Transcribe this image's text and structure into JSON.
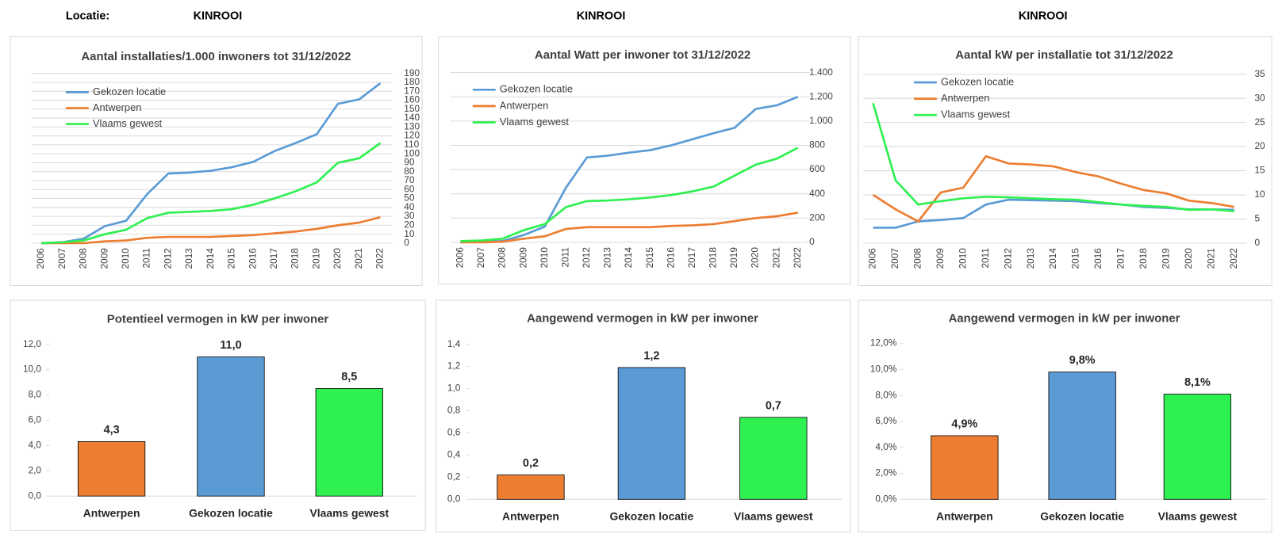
{
  "header": {
    "label": "Locatie:",
    "locations": [
      "KINROOI",
      "KINROOI",
      "KINROOI"
    ]
  },
  "chart_data": [
    {
      "type": "line",
      "title": "Aantal installaties/1.000  inwoners tot 31/12/2022",
      "categories": [
        "2006",
        "2007",
        "2008",
        "2009",
        "2010",
        "2011",
        "2012",
        "2013",
        "2014",
        "2015",
        "2016",
        "2017",
        "2018",
        "2019",
        "2020",
        "2021",
        "2022"
      ],
      "series": [
        {
          "name": "Gekozen locatie",
          "color": "#5b9bd5",
          "values": [
            0,
            1,
            5,
            19,
            25,
            55,
            78,
            79,
            81,
            85,
            91,
            103,
            112,
            122,
            156,
            161,
            179
          ]
        },
        {
          "name": "Antwerpen",
          "color": "#ed7d31",
          "values": [
            0,
            0,
            0,
            2,
            3,
            6,
            7,
            7,
            7,
            8,
            9,
            11,
            13,
            16,
            20,
            23,
            29
          ]
        },
        {
          "name": "Vlaams gewest",
          "color": "#2ef050",
          "values": [
            0,
            1,
            3,
            10,
            15,
            28,
            34,
            35,
            36,
            38,
            43,
            50,
            58,
            68,
            90,
            95,
            112
          ]
        }
      ],
      "ylim": [
        0,
        190
      ],
      "yticks": [
        0,
        10,
        20,
        30,
        40,
        50,
        60,
        70,
        80,
        90,
        100,
        110,
        120,
        130,
        140,
        150,
        160,
        170,
        180,
        190
      ],
      "grid": true,
      "legend": "upper left"
    },
    {
      "type": "line",
      "title": "Aantal Watt per inwoner  tot 31/12/2022",
      "categories": [
        "2006",
        "2007",
        "2008",
        "2009",
        "2010",
        "2011",
        "2012",
        "2013",
        "2014",
        "2015",
        "2016",
        "2017",
        "2018",
        "2019",
        "2020",
        "2021",
        "2022"
      ],
      "series": [
        {
          "name": "Gekozen locatie",
          "color": "#5b9bd5",
          "values": [
            0,
            5,
            10,
            60,
            130,
            450,
            700,
            715,
            740,
            760,
            800,
            850,
            900,
            945,
            1100,
            1130,
            1200
          ]
        },
        {
          "name": "Antwerpen",
          "color": "#ed7d31",
          "values": [
            0,
            0,
            5,
            30,
            50,
            110,
            125,
            125,
            125,
            125,
            135,
            140,
            150,
            175,
            200,
            215,
            245
          ]
        },
        {
          "name": "Vlaams gewest",
          "color": "#2ef050",
          "values": [
            10,
            15,
            30,
            100,
            150,
            290,
            340,
            345,
            355,
            370,
            390,
            420,
            460,
            550,
            640,
            690,
            780
          ]
        }
      ],
      "ylim": [
        0,
        1400
      ],
      "yticks": [
        0,
        200,
        400,
        600,
        800,
        {
          "value": 1000,
          "label": "1.000"
        },
        {
          "value": 1200,
          "label": "1.200"
        },
        {
          "value": 1400,
          "label": "1.400"
        }
      ],
      "grid": true,
      "legend": "upper left"
    },
    {
      "type": "line",
      "title": "Aantal kW per installatie  tot 31/12/2022",
      "categories": [
        "2006",
        "2007",
        "2008",
        "2009",
        "2010",
        "2011",
        "2012",
        "2013",
        "2014",
        "2015",
        "2016",
        "2017",
        "2018",
        "2019",
        "2020",
        "2021",
        "2022"
      ],
      "series": [
        {
          "name": "Gekozen locatie",
          "color": "#5b9bd5",
          "values": [
            3.2,
            3.2,
            4.5,
            4.8,
            5.2,
            8.0,
            9.0,
            8.9,
            8.8,
            8.7,
            8.3,
            8.0,
            7.5,
            7.3,
            7.0,
            7.0,
            6.9
          ]
        },
        {
          "name": "Antwerpen",
          "color": "#ed7d31",
          "values": [
            10,
            7,
            4.5,
            10.5,
            11.5,
            18,
            16.5,
            16.3,
            15.9,
            14.7,
            13.8,
            12.3,
            11,
            10.3,
            8.8,
            8.3,
            7.5
          ]
        },
        {
          "name": "Vlaams gewest",
          "color": "#2ef050",
          "values": [
            29,
            13,
            8,
            8.7,
            9.3,
            9.6,
            9.5,
            9.3,
            9.1,
            9,
            8.5,
            8,
            7.7,
            7.5,
            6.9,
            7,
            6.6
          ]
        }
      ],
      "ylim": [
        0,
        35
      ],
      "yticks": [
        0,
        5,
        10,
        15,
        20,
        25,
        30,
        35
      ],
      "grid": true,
      "legend": "upper left"
    },
    {
      "type": "bar",
      "title": "Potentieel vermogen in kW per inwoner",
      "categories": [
        "Antwerpen",
        "Gekozen locatie",
        "Vlaams gewest"
      ],
      "values": [
        4.3,
        11.0,
        8.5
      ],
      "value_labels": [
        "4,3",
        "11,0",
        "8,5"
      ],
      "colors": [
        "#ed7d31",
        "#5b9bd5",
        "#2ef050"
      ],
      "ylim": [
        0,
        12
      ],
      "yticks": [
        {
          "value": 0,
          "label": "0,0"
        },
        {
          "value": 2,
          "label": "2,0"
        },
        {
          "value": 4,
          "label": "4,0"
        },
        {
          "value": 6,
          "label": "6,0"
        },
        {
          "value": 8,
          "label": "8,0"
        },
        {
          "value": 10,
          "label": "10,0"
        },
        {
          "value": 12,
          "label": "12,0"
        }
      ]
    },
    {
      "type": "bar",
      "title": "Aangewend vermogen in kW per inwoner",
      "categories": [
        "Antwerpen",
        "Gekozen locatie",
        "Vlaams gewest"
      ],
      "values": [
        0.22,
        1.19,
        0.74
      ],
      "value_labels": [
        "0,2",
        "1,2",
        "0,7"
      ],
      "colors": [
        "#ed7d31",
        "#5b9bd5",
        "#2ef050"
      ],
      "ylim": [
        0,
        1.4
      ],
      "yticks": [
        {
          "value": 0,
          "label": "0,0"
        },
        {
          "value": 0.2,
          "label": "0,2"
        },
        {
          "value": 0.4,
          "label": "0,4"
        },
        {
          "value": 0.6,
          "label": "0,6"
        },
        {
          "value": 0.8,
          "label": "0,8"
        },
        {
          "value": 1.0,
          "label": "1,0"
        },
        {
          "value": 1.2,
          "label": "1,2"
        },
        {
          "value": 1.4,
          "label": "1,4"
        }
      ]
    },
    {
      "type": "bar",
      "title": "Aangewend vermogen in kW per inwoner",
      "categories": [
        "Antwerpen",
        "Gekozen locatie",
        "Vlaams gewest"
      ],
      "values": [
        4.9,
        9.8,
        8.1
      ],
      "value_labels": [
        "4,9%",
        "9,8%",
        "8,1%"
      ],
      "colors": [
        "#ed7d31",
        "#5b9bd5",
        "#2ef050"
      ],
      "ylim": [
        0,
        12
      ],
      "yticks": [
        {
          "value": 0,
          "label": "0,0%"
        },
        {
          "value": 2,
          "label": "2,0%"
        },
        {
          "value": 4,
          "label": "4,0%"
        },
        {
          "value": 6,
          "label": "6,0%"
        },
        {
          "value": 8,
          "label": "8,0%"
        },
        {
          "value": 10,
          "label": "10,0%"
        },
        {
          "value": 12,
          "label": "12,0%"
        }
      ]
    }
  ]
}
